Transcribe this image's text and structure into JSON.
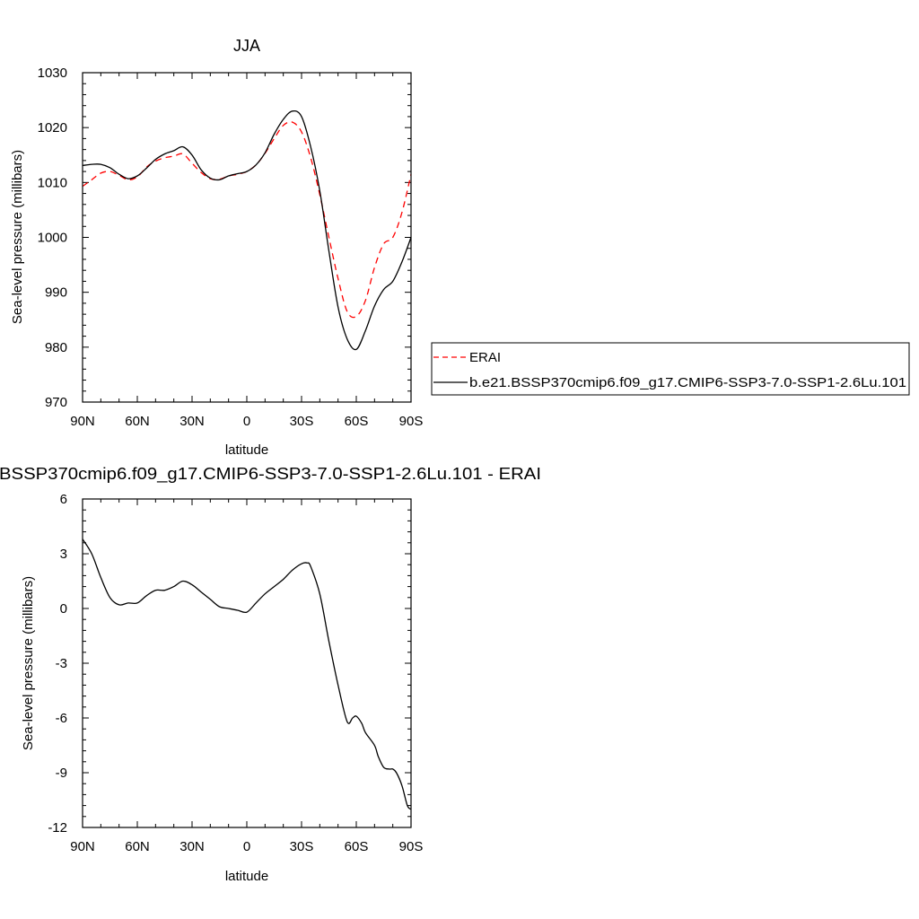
{
  "chart_data": [
    {
      "type": "line",
      "title": "JJA",
      "xlabel": "latitude",
      "ylabel": "Sea-level pressure (millibars)",
      "x_ticks": [
        "90N",
        "60N",
        "30N",
        "0",
        "30S",
        "60S",
        "90S"
      ],
      "y_ticks": [
        "970",
        "980",
        "990",
        "1000",
        "1010",
        "1020",
        "1030"
      ],
      "xlim": [
        90,
        -90
      ],
      "ylim": [
        970,
        1030
      ],
      "grid": false,
      "legend_position": "right",
      "series": [
        {
          "name": "ERAI",
          "color": "#ff0000",
          "dash": true,
          "x": [
            90,
            85,
            80,
            75,
            70,
            65,
            60,
            55,
            50,
            45,
            40,
            35,
            30,
            25,
            20,
            15,
            10,
            5,
            0,
            -5,
            -10,
            -15,
            -20,
            -25,
            -30,
            -35,
            -40,
            -45,
            -50,
            -55,
            -60,
            -65,
            -70,
            -75,
            -80,
            -85,
            -90
          ],
          "values": [
            1009.3,
            1010.5,
            1011.7,
            1012.0,
            1011.3,
            1010.5,
            1011.0,
            1012.8,
            1013.9,
            1014.5,
            1014.8,
            1015.2,
            1013.5,
            1011.8,
            1010.7,
            1010.6,
            1011.2,
            1011.5,
            1012.0,
            1013.2,
            1015.3,
            1018.0,
            1020.4,
            1021.0,
            1019.2,
            1014.5,
            1007.8,
            1000.0,
            992.5,
            986.5,
            985.6,
            988.5,
            994.5,
            998.8,
            1000.0,
            1004.5,
            1011.5
          ]
        },
        {
          "name": "b.e21.BSSP370cmip6.f09_g17.CMIP6-SSP3-7.0-SSP1-2.6Lu.101",
          "color": "#000000",
          "dash": false,
          "x": [
            90,
            85,
            80,
            75,
            70,
            65,
            60,
            55,
            50,
            45,
            40,
            35,
            30,
            25,
            20,
            15,
            10,
            5,
            0,
            -5,
            -10,
            -15,
            -20,
            -25,
            -30,
            -35,
            -40,
            -45,
            -50,
            -55,
            -60,
            -65,
            -70,
            -75,
            -80,
            -85,
            -90
          ],
          "values": [
            1013.1,
            1013.3,
            1013.3,
            1012.7,
            1011.5,
            1010.7,
            1011.2,
            1012.6,
            1014.2,
            1015.2,
            1015.8,
            1016.5,
            1015.0,
            1012.3,
            1010.8,
            1010.5,
            1011.2,
            1011.6,
            1012.0,
            1013.2,
            1015.4,
            1018.8,
            1021.5,
            1023.0,
            1022.0,
            1016.5,
            1008.5,
            997.5,
            987.3,
            981.5,
            979.6,
            983.0,
            987.5,
            990.5,
            992.0,
            995.5,
            1000.0
          ]
        }
      ]
    },
    {
      "type": "line",
      "title": "BSSP370cmip6.f09_g17.CMIP6-SSP3-7.0-SSP1-2.6Lu.101 - ERAI",
      "xlabel": "latitude",
      "ylabel": "Sea-level pressure (millibars)",
      "x_ticks": [
        "90N",
        "60N",
        "30N",
        "0",
        "30S",
        "60S",
        "90S"
      ],
      "y_ticks": [
        "-12",
        "-9",
        "-6",
        "-3",
        "0",
        "3",
        "6"
      ],
      "xlim": [
        90,
        -90
      ],
      "ylim": [
        -12,
        6
      ],
      "grid": false,
      "series": [
        {
          "color": "#000000",
          "dash": false,
          "x": [
            90,
            85,
            80,
            75,
            70,
            65,
            60,
            55,
            50,
            45,
            40,
            35,
            30,
            25,
            20,
            15,
            10,
            5,
            0,
            -5,
            -10,
            -15,
            -20,
            -25,
            -30,
            -33,
            -35,
            -40,
            -45,
            -50,
            -55,
            -58,
            -60,
            -63,
            -65,
            -70,
            -72,
            -75,
            -78,
            -80,
            -82,
            -85,
            -88,
            -90
          ],
          "values": [
            3.8,
            3.0,
            1.7,
            0.6,
            0.2,
            0.3,
            0.3,
            0.7,
            1.0,
            1.0,
            1.2,
            1.5,
            1.3,
            0.9,
            0.5,
            0.1,
            0.0,
            -0.1,
            -0.2,
            0.3,
            0.8,
            1.2,
            1.6,
            2.1,
            2.45,
            2.5,
            2.3,
            0.8,
            -1.8,
            -4.2,
            -6.2,
            -6.0,
            -5.9,
            -6.3,
            -6.8,
            -7.5,
            -8.1,
            -8.7,
            -8.8,
            -8.8,
            -9.0,
            -9.7,
            -10.8,
            -11.0
          ]
        }
      ]
    }
  ]
}
